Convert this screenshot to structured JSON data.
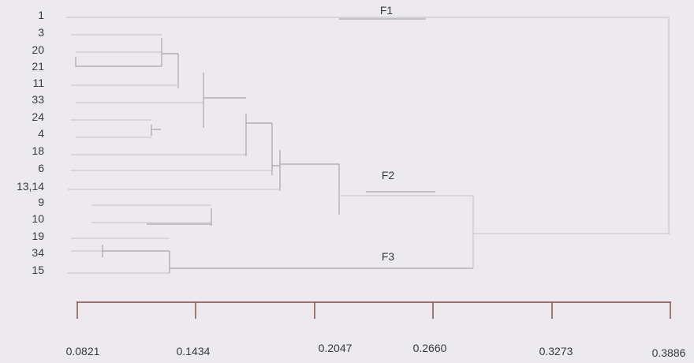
{
  "leaves": [
    "1",
    "3",
    "20",
    "21",
    "11",
    "33",
    "24",
    "4",
    "18",
    "6",
    "13,14",
    "9",
    "10",
    "19",
    "34",
    "15"
  ],
  "clusters": [
    "F1",
    "F2",
    "F3"
  ],
  "axis": {
    "ticks": [
      "0.0821",
      "0.1434",
      "0.2047",
      "0.2660",
      "0.3273",
      "0.3886"
    ]
  },
  "colors": {
    "background": "#ece9ef",
    "branch": "#d8d4dd",
    "axis": "#7a4a44",
    "text": "#3a3a3a"
  }
}
